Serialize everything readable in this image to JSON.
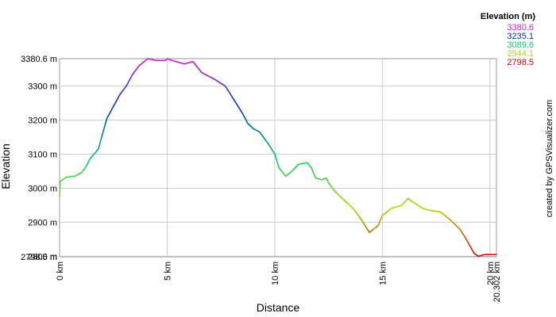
{
  "chart_data": {
    "type": "line",
    "x_label": "Distance",
    "y_label": "Elevation",
    "credit": "created by GPSVisualizer.com",
    "x": [
      0,
      0.03,
      0.3,
      0.7,
      1.0,
      1.2,
      1.4,
      1.6,
      1.8,
      2.0,
      2.2,
      2.5,
      2.8,
      3.1,
      3.4,
      3.7,
      4.1,
      4.5,
      4.9,
      5.0,
      5.4,
      5.8,
      6.2,
      6.6,
      7.2,
      7.7,
      8.1,
      8.5,
      8.75,
      9.0,
      9.3,
      9.7,
      10.0,
      10.2,
      10.5,
      10.8,
      11.1,
      11.5,
      11.7,
      11.9,
      12.2,
      12.4,
      12.5,
      12.8,
      13.3,
      13.65,
      14.0,
      14.4,
      14.8,
      15.0,
      15.4,
      15.9,
      16.2,
      16.4,
      16.9,
      17.2,
      17.7,
      18.1,
      18.6,
      18.9,
      19.25,
      19.45,
      19.75,
      20.302
    ],
    "values": [
      2975,
      3020,
      3032,
      3035,
      3045,
      3060,
      3085,
      3100,
      3115,
      3160,
      3205,
      3240,
      3275,
      3300,
      3335,
      3360,
      3380.6,
      3375,
      3375,
      3380,
      3372,
      3365,
      3372,
      3340,
      3320,
      3300,
      3260,
      3220,
      3190,
      3175,
      3165,
      3130,
      3100,
      3060,
      3035,
      3050,
      3070,
      3075,
      3060,
      3030,
      3025,
      3030,
      3015,
      2990,
      2960,
      2940,
      2910,
      2870,
      2890,
      2920,
      2940,
      2950,
      2970,
      2960,
      2940,
      2935,
      2930,
      2910,
      2880,
      2850,
      2810,
      2800,
      2805,
      2805
    ],
    "xlim": [
      0,
      20.302
    ],
    "ylim": [
      2798.5,
      3380.6
    ],
    "xticks": [
      {
        "value": 0,
        "label": "0 km"
      },
      {
        "value": 5,
        "label": "5 km"
      },
      {
        "value": 10,
        "label": "10 km"
      },
      {
        "value": 15,
        "label": "15 km"
      },
      {
        "value": 20,
        "label": "20 km"
      },
      {
        "value": 20.302,
        "label": "20.302 km"
      }
    ],
    "yticks": [
      {
        "value": 2798.5,
        "label": "2798.5 m"
      },
      {
        "value": 2800,
        "label": "2800 m"
      },
      {
        "value": 2900,
        "label": "2900 m"
      },
      {
        "value": 3000,
        "label": "3000 m"
      },
      {
        "value": 3100,
        "label": "3100 m"
      },
      {
        "value": 3200,
        "label": "3200 m"
      },
      {
        "value": 3300,
        "label": "3300 m"
      },
      {
        "value": 3380.6,
        "label": "3380.6 m"
      }
    ],
    "grid": true,
    "legend": {
      "title": "Elevation (m)",
      "values": [
        3380.6,
        3235.1,
        3089.6,
        2944.1,
        2798.5
      ],
      "colors": [
        "#cc22cc",
        "#0033cc",
        "#00cc77",
        "#aadd00",
        "#dd0000"
      ]
    }
  }
}
